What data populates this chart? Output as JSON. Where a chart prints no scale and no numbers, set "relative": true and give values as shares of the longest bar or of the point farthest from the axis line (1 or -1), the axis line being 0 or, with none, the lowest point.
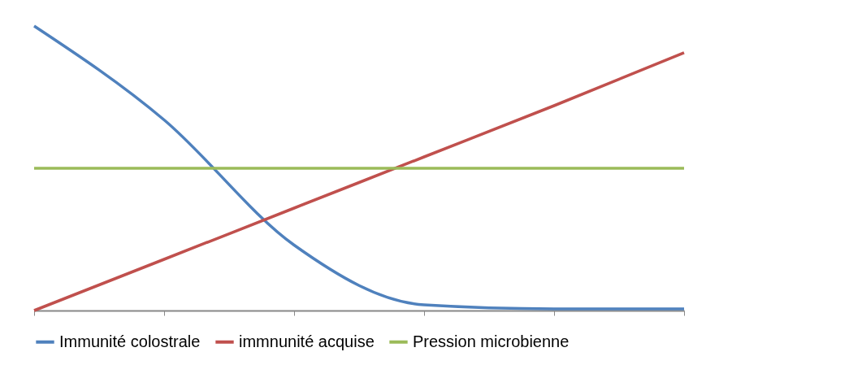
{
  "chart_data": {
    "type": "line",
    "relative": true,
    "categories": [
      null,
      null,
      null,
      null,
      null,
      null
    ],
    "legend": "bottom",
    "series": [
      {
        "name": "Immunité colostrale",
        "color": "#4f81bd",
        "values": [
          1,
          0.67,
          0.23,
          0.02,
          0.006,
          0.006
        ]
      },
      {
        "name": "immnunité acquise",
        "color": "#c0504d",
        "values": [
          0,
          0.18,
          0.36,
          0.54,
          0.72,
          0.906
        ]
      },
      {
        "name": "Pression microbienne",
        "color": "#9bbb59",
        "values": [
          0.5,
          0.5,
          0.5,
          0.5,
          0.5,
          0.5
        ]
      }
    ]
  }
}
